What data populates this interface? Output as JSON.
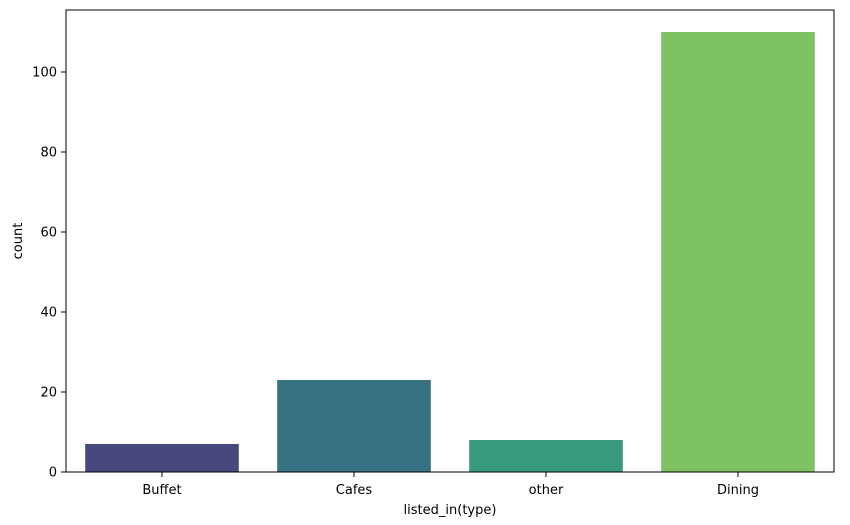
{
  "chart_data": {
    "type": "bar",
    "title": "",
    "xlabel": "listed_in(type)",
    "ylabel": "count",
    "categories": [
      "Buffet",
      "Cafes",
      "other",
      "Dining"
    ],
    "values": [
      7,
      23,
      8,
      110
    ],
    "colors": [
      "#48487e",
      "#367282",
      "#379a7e",
      "#7fc262"
    ],
    "ylim": [
      0,
      115.5
    ],
    "yticks": [
      0,
      20,
      40,
      60,
      80,
      100
    ],
    "grid": false,
    "legend": "none"
  }
}
